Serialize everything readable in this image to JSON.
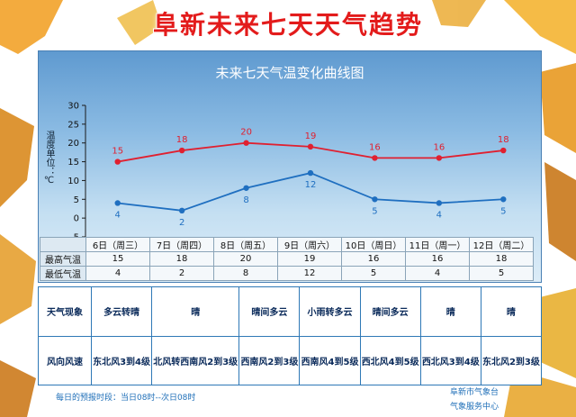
{
  "banner": "阜新未来七天天气趋势",
  "footer": {
    "left": "每日的预报时段：当日08时--次日08时",
    "right_line1": "阜新市气象台",
    "right_line2": "气象服务中心"
  },
  "rows": {
    "high_label": "最高气温",
    "low_label": "最低气温",
    "weather_label": "天气现象",
    "wind_label": "风向风速"
  },
  "days": [
    {
      "date": "6日（周三）",
      "weather": "多云转晴",
      "wind": "东北风3到4级"
    },
    {
      "date": "7日（周四）",
      "weather": "晴",
      "wind": "北风转西南风2到3级"
    },
    {
      "date": "8日（周五）",
      "weather": "晴间多云",
      "wind": "西南风2到3级"
    },
    {
      "date": "9日（周六）",
      "weather": "小雨转多云",
      "wind": "西南风4到5级"
    },
    {
      "date": "10日（周日）",
      "weather": "晴间多云",
      "wind": "西北风4到5级"
    },
    {
      "date": "11日（周一）",
      "weather": "晴",
      "wind": "西北风3到4级"
    },
    {
      "date": "12日（周二）",
      "weather": "晴",
      "wind": "东北风2到3级"
    }
  ],
  "chart_data": {
    "type": "line",
    "title": "未来七天气温变化曲线图",
    "ylabel": "温度单位：℃",
    "xlabel": "",
    "categories": [
      "6日（周三）",
      "7日（周四）",
      "8日（周五）",
      "9日（周六）",
      "10日（周日）",
      "11日（周一）",
      "12日（周二）"
    ],
    "ylim": [
      -5,
      30
    ],
    "yticks": [
      -5,
      0,
      5,
      10,
      15,
      20,
      25,
      30
    ],
    "series": [
      {
        "name": "最高气温",
        "values": [
          15,
          18,
          20,
          19,
          16,
          16,
          18
        ],
        "color": "#e02030"
      },
      {
        "name": "最低气温",
        "values": [
          4,
          2,
          8,
          12,
          5,
          4,
          5
        ],
        "color": "#1f6fc0"
      }
    ],
    "grid": false,
    "legend": "none"
  }
}
